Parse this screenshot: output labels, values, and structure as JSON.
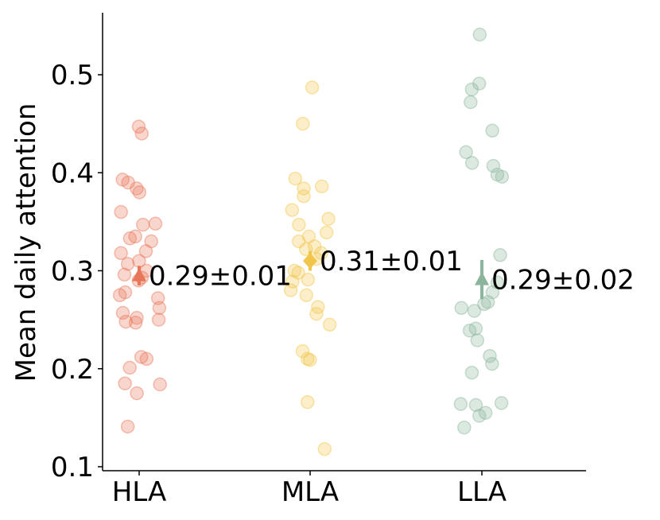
{
  "chart_data": {
    "type": "scatter",
    "ylabel": "Mean daily attention",
    "xlabel": "",
    "ylim": [
      0.1,
      0.56
    ],
    "yticks": [
      "0.1",
      "0.2",
      "0.3",
      "0.4",
      "0.5"
    ],
    "grid": false,
    "groups": [
      {
        "category": "HLA",
        "color": "#E8775A",
        "mean": 0.295,
        "error": 0.01,
        "annotation": "0.29±0.01",
        "marker": "triangle",
        "points": [
          0.447,
          0.44,
          0.393,
          0.39,
          0.384,
          0.38,
          0.36,
          0.348,
          0.347,
          0.335,
          0.333,
          0.33,
          0.32,
          0.318,
          0.31,
          0.307,
          0.3,
          0.296,
          0.293,
          0.29,
          0.278,
          0.275,
          0.272,
          0.262,
          0.257,
          0.252,
          0.25,
          0.248,
          0.247,
          0.212,
          0.21,
          0.201,
          0.185,
          0.184,
          0.175,
          0.141
        ]
      },
      {
        "category": "MLA",
        "color": "#F2C64B",
        "mean": 0.31,
        "error": 0.01,
        "annotation": "0.31±0.01",
        "marker": "diamond",
        "points": [
          0.487,
          0.45,
          0.394,
          0.386,
          0.384,
          0.376,
          0.362,
          0.353,
          0.347,
          0.339,
          0.335,
          0.33,
          0.325,
          0.322,
          0.318,
          0.312,
          0.3,
          0.298,
          0.291,
          0.289,
          0.28,
          0.275,
          0.263,
          0.256,
          0.245,
          0.218,
          0.21,
          0.209,
          0.166,
          0.118
        ]
      },
      {
        "category": "LLA",
        "color": "#8BB59C",
        "mean": 0.291,
        "error": 0.02,
        "annotation": "0.29±0.02",
        "marker": "triangle",
        "points": [
          0.541,
          0.491,
          0.485,
          0.472,
          0.443,
          0.421,
          0.41,
          0.407,
          0.398,
          0.396,
          0.316,
          0.288,
          0.278,
          0.268,
          0.266,
          0.262,
          0.259,
          0.241,
          0.239,
          0.229,
          0.213,
          0.205,
          0.196,
          0.165,
          0.164,
          0.163,
          0.155,
          0.152,
          0.14
        ]
      }
    ]
  }
}
